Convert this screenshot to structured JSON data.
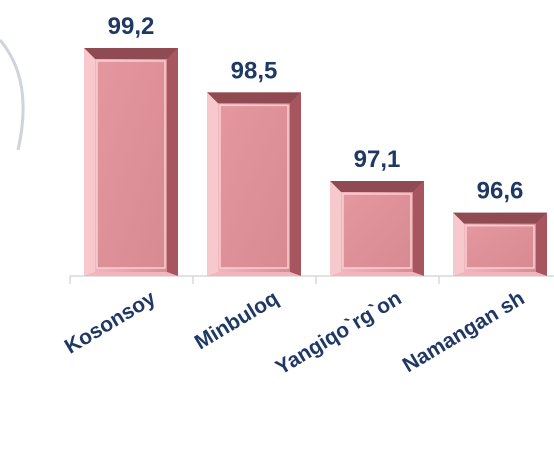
{
  "chart_data": {
    "type": "bar",
    "title": "",
    "xlabel": "",
    "ylabel": "",
    "categories": [
      "Kosonsoy",
      "Minbuloq",
      "Yangiqo`rg`on",
      "Namangan sh"
    ],
    "values": [
      99.2,
      98.5,
      97.1,
      96.6
    ],
    "value_labels": [
      "99,2",
      "98,5",
      "97,1",
      "96,6"
    ],
    "ylim": [
      95.6,
      99.2
    ],
    "grid": false,
    "legend": "none",
    "bar_color": "#e2949c",
    "bar_dark_color": "#8f4a52",
    "bar_light_color": "#f7c8cc",
    "label_color": "#1f3864",
    "axis_color": "#d9d9d9"
  }
}
